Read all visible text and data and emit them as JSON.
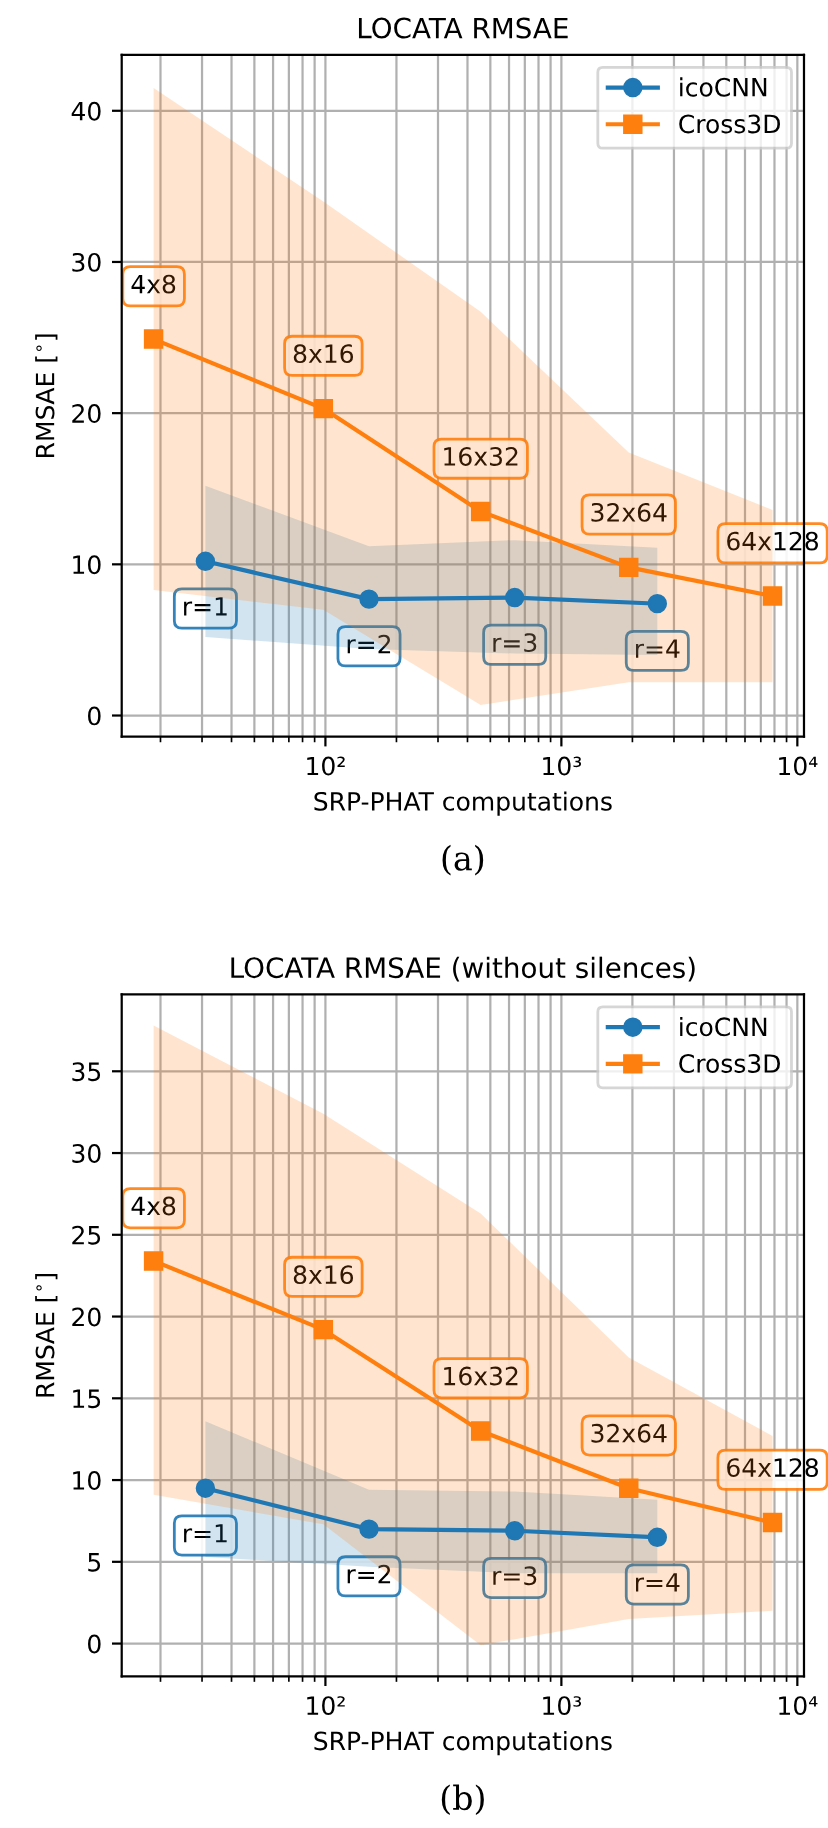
{
  "chart_data": [
    {
      "type": "line",
      "title": "LOCATA RMSAE",
      "xlabel": "SRP-PHAT computations",
      "ylabel": "RMSAE [$^{∘}$]",
      "log": "x",
      "grid": true,
      "legend": "top right",
      "line_style": "solid",
      "xlim": [
        13.7,
        10670
      ],
      "xticks": [
        {
          "value": 100,
          "label": "10²"
        },
        {
          "value": 1000,
          "label": "10³"
        },
        {
          "value": 10000,
          "label": "10⁴"
        }
      ],
      "ylim": [
        -1.4,
        43.7
      ],
      "yticks": [
        0,
        10,
        20,
        30,
        40
      ],
      "series": [
        {
          "name": "icoCNN",
          "color": "#1f77b4",
          "marker": "circle",
          "x": [
            31,
            153,
            634,
            2550
          ],
          "values": [
            10.2,
            7.7,
            7.8,
            7.4
          ],
          "lower": [
            5.2,
            4.4,
            4.1,
            4.0
          ],
          "upper": [
            15.2,
            11.2,
            11.6,
            11.1
          ]
        },
        {
          "name": "Cross3D",
          "color": "#ff7f0e",
          "marker": "square",
          "x": [
            18.7,
            98,
            455,
            1930,
            7850
          ],
          "values": [
            24.9,
            20.3,
            13.5,
            9.8,
            7.9
          ],
          "lower": [
            8.3,
            7.0,
            0.7,
            2.2,
            2.2
          ],
          "upper": [
            41.5,
            34.0,
            26.7,
            17.4,
            13.6
          ]
        }
      ],
      "annotations": [
        {
          "text": "r=1",
          "x": 31,
          "y": 10.2
        },
        {
          "text": "r=2",
          "x": 153,
          "y": 7.7
        },
        {
          "text": "r=3",
          "x": 634,
          "y": 7.8
        },
        {
          "text": "r=4",
          "x": 2550,
          "y": 7.4
        },
        {
          "text": "4x8",
          "x": 18.7,
          "y": 24.9
        },
        {
          "text": "8x16",
          "x": 98,
          "y": 20.3
        },
        {
          "text": "16x32",
          "x": 455,
          "y": 13.5
        },
        {
          "text": "32x64",
          "x": 1930,
          "y": 9.8
        },
        {
          "text": "64x128",
          "x": 7850,
          "y": 7.9
        },
        "(a)"
      ]
    },
    {
      "type": "line",
      "title": "LOCATA RMSAE (without silences)",
      "xlabel": "SRP-PHAT computations",
      "ylabel": "RMSAE [$^{∘}$]",
      "log": "x",
      "grid": true,
      "legend": "top right",
      "line_style": "solid",
      "xlim": [
        13.7,
        10670
      ],
      "xticks": [
        {
          "value": 100,
          "label": "10²"
        },
        {
          "value": 1000,
          "label": "10³"
        },
        {
          "value": 10000,
          "label": "10⁴"
        }
      ],
      "ylim": [
        -2.0,
        39.7
      ],
      "yticks": [
        0,
        5,
        10,
        15,
        20,
        25,
        30,
        35
      ],
      "series": [
        {
          "name": "icoCNN",
          "color": "#1f77b4",
          "marker": "circle",
          "x": [
            31,
            153,
            634,
            2550
          ],
          "values": [
            9.5,
            7.0,
            6.9,
            6.5
          ],
          "lower": [
            5.3,
            4.7,
            4.3,
            4.3
          ],
          "upper": [
            13.6,
            9.4,
            9.3,
            8.8
          ]
        },
        {
          "name": "Cross3D",
          "color": "#ff7f0e",
          "marker": "square",
          "x": [
            18.7,
            98,
            455,
            1930,
            7850
          ],
          "values": [
            23.4,
            19.2,
            13.0,
            9.5,
            7.4
          ],
          "lower": [
            9.1,
            7.3,
            -0.1,
            1.5,
            2.0
          ],
          "upper": [
            37.8,
            32.4,
            26.3,
            17.5,
            12.7
          ]
        }
      ],
      "annotations": [
        {
          "text": "r=1",
          "x": 31,
          "y": 9.5
        },
        {
          "text": "r=2",
          "x": 153,
          "y": 7.0
        },
        {
          "text": "r=3",
          "x": 634,
          "y": 6.9
        },
        {
          "text": "r=4",
          "x": 2550,
          "y": 6.5
        },
        {
          "text": "4x8",
          "x": 18.7,
          "y": 23.4
        },
        {
          "text": "8x16",
          "x": 98,
          "y": 19.2
        },
        {
          "text": "16x32",
          "x": 455,
          "y": 13.0
        },
        {
          "text": "32x64",
          "x": 1930,
          "y": 9.5
        },
        {
          "text": "64x128",
          "x": 7850,
          "y": 7.4
        },
        "(b)"
      ]
    }
  ]
}
